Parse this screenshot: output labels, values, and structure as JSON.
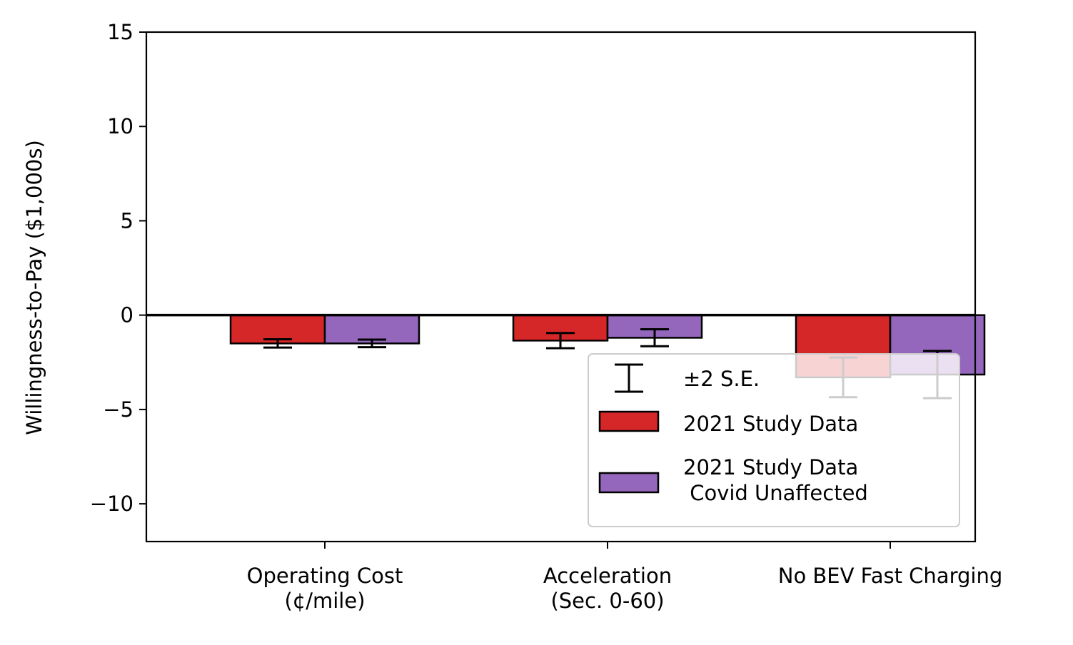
{
  "chart_data": {
    "type": "bar",
    "title": "",
    "xlabel": "",
    "ylabel": "Willingness-to-Pay ($1,000s)",
    "ylim": [
      -12,
      15
    ],
    "yticks": [
      -10,
      -5,
      0,
      5,
      10,
      15
    ],
    "ytick_labels": [
      "−10",
      "−5",
      "0",
      "5",
      "10",
      "15"
    ],
    "categories": [
      [
        "Operating Cost",
        "(¢/mile)"
      ],
      [
        "Acceleration",
        "(Sec. 0-60)"
      ],
      [
        "No BEV Fast Charging"
      ]
    ],
    "series": [
      {
        "name": "2021 Study Data",
        "color": "#d62728",
        "values": [
          -1.5,
          -1.35,
          -3.3
        ],
        "err": [
          0.22,
          0.4,
          1.05
        ]
      },
      {
        "name": "2021 Study Data\n Covid Unaffected",
        "color": "#9467bd",
        "values": [
          -1.5,
          -1.2,
          -3.15
        ],
        "err": [
          0.2,
          0.45,
          1.25
        ]
      }
    ],
    "errorbar_label": "±2 S.E.",
    "legend_loc": "lower right",
    "grid": false
  }
}
